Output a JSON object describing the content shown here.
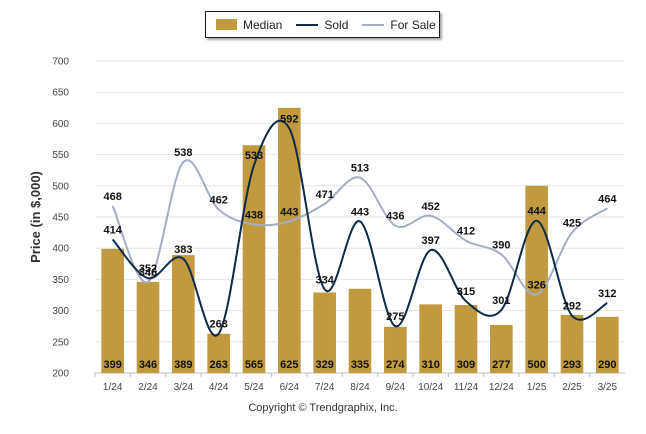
{
  "legend": {
    "median_label": "Median",
    "sold_label": "Sold",
    "forsale_label": "For Sale"
  },
  "footer": {
    "copyright": "Copyright © Trendgraphix, Inc."
  },
  "colors": {
    "median": "#c19a3f",
    "sold": "#0e2a47",
    "forsale": "#a5adc4"
  },
  "chart_data": {
    "type": "bar",
    "ylabel": "Price (in $,000)",
    "xlabel": "",
    "ylim": [
      200,
      700
    ],
    "yticks": [
      200,
      250,
      300,
      350,
      400,
      450,
      500,
      550,
      600,
      650,
      700
    ],
    "grid": true,
    "legend_position": "top-center",
    "categories": [
      "1/24",
      "2/24",
      "3/24",
      "4/24",
      "5/24",
      "6/24",
      "7/24",
      "8/24",
      "9/24",
      "10/24",
      "11/24",
      "12/24",
      "1/25",
      "2/25",
      "3/25"
    ],
    "series": [
      {
        "name": "Median",
        "type": "bar",
        "values": [
          399,
          346,
          389,
          263,
          565,
          625,
          329,
          335,
          274,
          310,
          309,
          277,
          500,
          293,
          290
        ]
      },
      {
        "name": "Sold",
        "type": "line",
        "values": [
          414,
          352,
          383,
          263,
          533,
          592,
          334,
          443,
          275,
          397,
          315,
          301,
          444,
          292,
          312
        ]
      },
      {
        "name": "For Sale",
        "type": "line",
        "values": [
          468,
          346,
          538,
          462,
          438,
          443,
          471,
          513,
          436,
          452,
          412,
          390,
          326,
          425,
          464
        ]
      }
    ]
  }
}
